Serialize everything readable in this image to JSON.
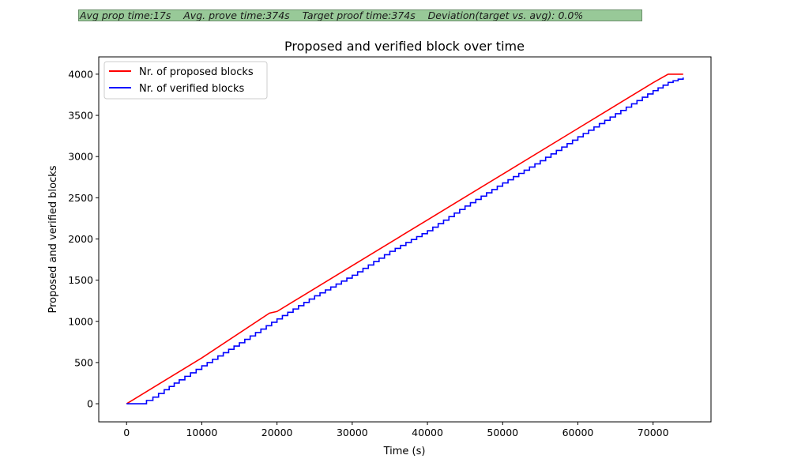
{
  "banner": {
    "text": "Avg prop time:17s    Avg. prove time:374s    Target proof time:374s    Deviation(target vs. avg): 0.0%",
    "background_color": "#98c998"
  },
  "chart_data": {
    "type": "line",
    "title": "Proposed and verified block over time",
    "xlabel": "Time (s)",
    "ylabel": "Proposed and verified blocks",
    "xlim": [
      -3700,
      77700
    ],
    "ylim": [
      -220,
      4210
    ],
    "xticks": [
      0,
      10000,
      20000,
      30000,
      40000,
      50000,
      60000,
      70000
    ],
    "yticks": [
      0,
      500,
      1000,
      1500,
      2000,
      2500,
      3000,
      3500,
      4000
    ],
    "grid": false,
    "legend": "top-left",
    "series": [
      {
        "name": "Nr. of proposed blocks",
        "color": "#ff0000",
        "x": [
          0,
          1000,
          5000,
          10000,
          19000,
          20000,
          30000,
          40000,
          50000,
          60000,
          70000,
          72000,
          74000
        ],
        "y": [
          0,
          55,
          278,
          556,
          1100,
          1120,
          1676,
          2231,
          2786,
          3341,
          3897,
          4000,
          4000
        ]
      },
      {
        "name": "Nr. of verified blocks",
        "color": "#0000ff",
        "x": [
          0,
          1800,
          3500,
          5000,
          7000,
          10000,
          15000,
          20000,
          25000,
          30000,
          35000,
          40000,
          45000,
          50000,
          55000,
          60000,
          65000,
          70000,
          72000,
          74000
        ],
        "y": [
          0,
          0,
          80,
          170,
          290,
          460,
          740,
          1030,
          1310,
          1560,
          1850,
          2100,
          2400,
          2680,
          2950,
          3240,
          3520,
          3800,
          3900,
          3960
        ]
      }
    ]
  }
}
